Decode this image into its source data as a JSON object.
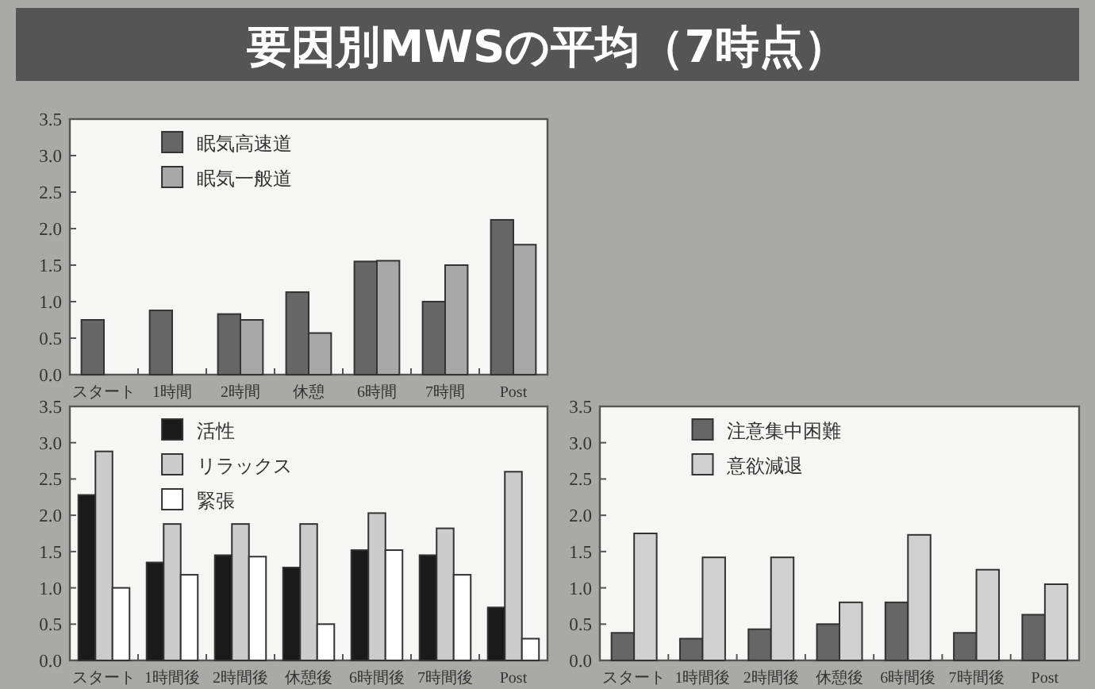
{
  "chart_data": [
    {
      "type": "bar",
      "title": "要因別MWSの平均（7時点）",
      "categories": [
        "スタート",
        "1時間",
        "2時間",
        "休憩",
        "6時間",
        "7時間",
        "Post"
      ],
      "series": [
        {
          "name": "眠気高速道",
          "color": "#666666",
          "values": [
            0.75,
            0.88,
            0.83,
            1.13,
            1.55,
            1.0,
            2.12
          ]
        },
        {
          "name": "眠気一般道",
          "color": "#a8a8a8",
          "values": [
            0,
            0,
            0.75,
            0.57,
            1.56,
            1.5,
            1.78
          ]
        }
      ],
      "ylim": [
        0,
        3.5
      ],
      "yticks": [
        {
          "value": 0,
          "label": "0.0"
        },
        {
          "value": 0.5,
          "label": "0.5"
        },
        {
          "value": 1,
          "label": "1.0"
        },
        {
          "value": 1.5,
          "label": "1.5"
        },
        {
          "value": 2,
          "label": "2.0"
        },
        {
          "value": 2.5,
          "label": "2.5"
        },
        {
          "value": 3,
          "label": "3.0"
        },
        {
          "value": 3.5,
          "label": "3.5"
        }
      ],
      "legend": "top left"
    },
    {
      "type": "bar",
      "categories": [
        "スタート",
        "1時間後",
        "2時間後",
        "休憩後",
        "6時間後",
        "7時間後",
        "Post"
      ],
      "series": [
        {
          "name": "活性",
          "color": "#1a1a1a",
          "values": [
            2.28,
            1.35,
            1.45,
            1.28,
            1.52,
            1.45,
            0.73
          ]
        },
        {
          "name": "リラックス",
          "color": "#cccccc",
          "values": [
            2.88,
            1.88,
            1.88,
            1.88,
            2.03,
            1.82,
            2.6
          ]
        },
        {
          "name": "緊張",
          "color": "#ffffff",
          "values": [
            1.0,
            1.18,
            1.43,
            0.5,
            1.52,
            1.18,
            0.3
          ]
        }
      ],
      "ylim": [
        0,
        3.5
      ],
      "yticks": [
        {
          "value": 0,
          "label": "0.0"
        },
        {
          "value": 0.5,
          "label": "0.5"
        },
        {
          "value": 1,
          "label": "1.0"
        },
        {
          "value": 1.5,
          "label": "1.5"
        },
        {
          "value": 2,
          "label": "2.0"
        },
        {
          "value": 2.5,
          "label": "2.5"
        },
        {
          "value": 3,
          "label": "3.0"
        },
        {
          "value": 3.5,
          "label": "3.5"
        }
      ],
      "legend": "top left"
    },
    {
      "type": "bar",
      "categories": [
        "スタート",
        "1時間後",
        "2時間後",
        "休憩後",
        "6時間後",
        "7時間後",
        "Post"
      ],
      "series": [
        {
          "name": "注意集中困難",
          "color": "#666666",
          "values": [
            0.38,
            0.3,
            0.43,
            0.5,
            0.8,
            0.38,
            0.63
          ]
        },
        {
          "name": "意欲減退",
          "color": "#d0d0d0",
          "values": [
            1.75,
            1.42,
            1.42,
            0.8,
            1.73,
            1.25,
            1.05
          ]
        }
      ],
      "ylim": [
        0,
        3.5
      ],
      "yticks": [
        {
          "value": 0,
          "label": "0.0"
        },
        {
          "value": 0.5,
          "label": "0.5"
        },
        {
          "value": 1,
          "label": "1.0"
        },
        {
          "value": 1.5,
          "label": "1.5"
        },
        {
          "value": 2,
          "label": "2.0"
        },
        {
          "value": 2.5,
          "label": "2.5"
        },
        {
          "value": 3,
          "label": "3.0"
        },
        {
          "value": 3.5,
          "label": "3.5"
        }
      ],
      "legend": "top left"
    }
  ]
}
